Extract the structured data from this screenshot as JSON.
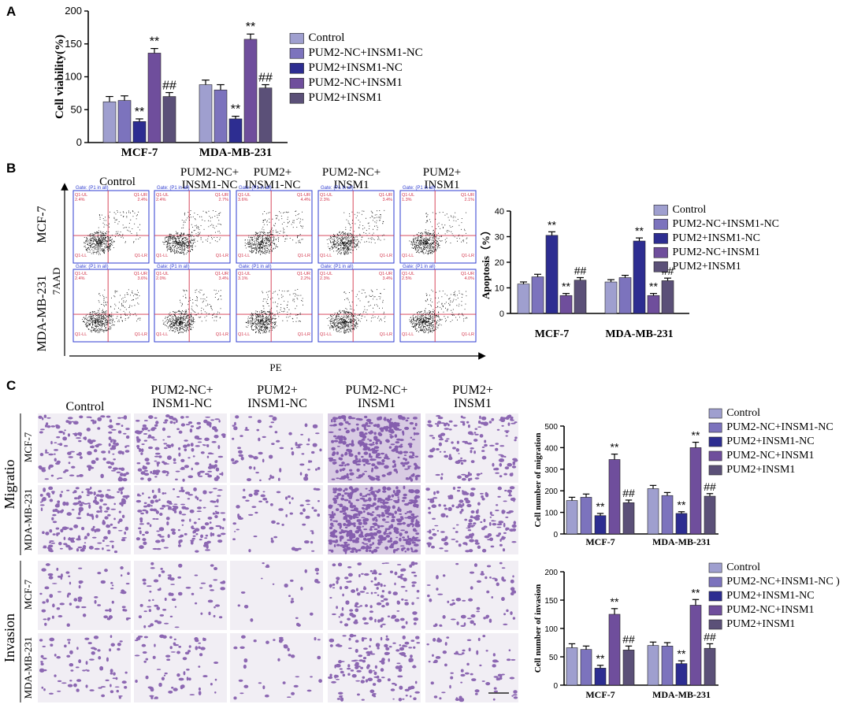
{
  "panels": {
    "a": "A",
    "b": "B",
    "c": "C"
  },
  "groups": [
    "Control",
    "PUM2-NC+INSM1-NC",
    "PUM2+INSM1-NC",
    "PUM2-NC+INSM1",
    "PUM2+INSM1"
  ],
  "colors": [
    "#9f9fcf",
    "#7c73bd",
    "#2d2d91",
    "#6f4e9c",
    "#5b5078"
  ],
  "condition_headers": [
    [
      "Control"
    ],
    [
      "PUM2-NC+",
      "INSM1-NC"
    ],
    [
      "PUM2+",
      "INSM1-NC"
    ],
    [
      "PUM2-NC+",
      "INSM1"
    ],
    [
      "PUM2+",
      "INSM1"
    ]
  ],
  "cell_lines": [
    "MCF-7",
    "MDA-MB-231"
  ],
  "flow": {
    "y_axis": "7AAD",
    "x_axis": "PE",
    "gate_label": "Gate: (P1 in all)",
    "quadrants": [
      "Q1-UL",
      "Q1-UR",
      "Q1-LL",
      "Q1-LR"
    ],
    "values": [
      [
        [
          "2.4%",
          "2.4%"
        ],
        [
          "2.4%",
          "2.7%"
        ],
        [
          "3.6%",
          "4.4%"
        ],
        [
          "2.3%",
          "3.4%"
        ],
        [
          "1.3%",
          "2.1%"
        ]
      ],
      [
        [
          "2.4%",
          "3.6%"
        ],
        [
          "2.0%",
          "3.4%"
        ],
        [
          "3.1%",
          "2.2%"
        ],
        [
          "2.3%",
          "3.4%"
        ],
        [
          "2.5%",
          "4.0%"
        ]
      ]
    ]
  },
  "assay_labels": {
    "migration": "Migratio",
    "invasion": "Invasion"
  },
  "legend_c_second_item": "PUM2-NC+INSM1-NC )",
  "chart_data": [
    {
      "id": "viability",
      "type": "bar",
      "ylabel": "Cell viability(%)",
      "ylim": [
        0,
        200
      ],
      "yticks": [
        0,
        50,
        100,
        150,
        200
      ],
      "categories": [
        "MCF-7",
        "MDA-MB-231"
      ],
      "series": [
        {
          "name": "Control",
          "values": [
            62,
            88
          ],
          "errors": [
            8,
            7
          ]
        },
        {
          "name": "PUM2-NC+INSM1-NC",
          "values": [
            64,
            80
          ],
          "errors": [
            7,
            8
          ]
        },
        {
          "name": "PUM2+INSM1-NC",
          "values": [
            32,
            36
          ],
          "errors": [
            4,
            4
          ]
        },
        {
          "name": "PUM2-NC+INSM1",
          "values": [
            136,
            157
          ],
          "errors": [
            7,
            8
          ]
        },
        {
          "name": "PUM2+INSM1",
          "values": [
            70,
            83
          ],
          "errors": [
            6,
            5
          ]
        }
      ],
      "annotations": [
        [
          "",
          ""
        ],
        [
          "",
          ""
        ],
        [
          "**",
          "**"
        ],
        [
          "**",
          "**"
        ],
        [
          "##",
          "##"
        ]
      ]
    },
    {
      "id": "apoptosis",
      "type": "bar",
      "ylabel": "Apoptosis（%）",
      "ylim": [
        0,
        40
      ],
      "yticks": [
        0,
        10,
        20,
        30,
        40
      ],
      "categories": [
        "MCF-7",
        "MDA-MB-231"
      ],
      "series": [
        {
          "name": "Control",
          "values": [
            11.5,
            12.3
          ],
          "errors": [
            0.8,
            0.9
          ]
        },
        {
          "name": "PUM2-NC+INSM1-NC",
          "values": [
            14.3,
            14
          ],
          "errors": [
            1,
            0.9
          ]
        },
        {
          "name": "PUM2+INSM1-NC",
          "values": [
            30.5,
            28.3
          ],
          "errors": [
            1.4,
            1.2
          ]
        },
        {
          "name": "PUM2-NC+INSM1",
          "values": [
            7,
            7
          ],
          "errors": [
            0.8,
            0.8
          ]
        },
        {
          "name": "PUM2+INSM1",
          "values": [
            13,
            12.8
          ],
          "errors": [
            1,
            1
          ]
        }
      ],
      "annotations": [
        [
          "",
          ""
        ],
        [
          "",
          ""
        ],
        [
          "**",
          "**"
        ],
        [
          "**",
          "**"
        ],
        [
          "##",
          "##"
        ]
      ]
    },
    {
      "id": "migration",
      "type": "bar",
      "ylabel": "Cell number of migration",
      "ylim": [
        0,
        500
      ],
      "yticks": [
        0,
        100,
        200,
        300,
        400,
        500
      ],
      "categories": [
        "MCF-7",
        "MDA-MB-231"
      ],
      "series": [
        {
          "name": "Control",
          "values": [
            155,
            210
          ],
          "errors": [
            15,
            15
          ]
        },
        {
          "name": "PUM2-NC+INSM1-NC",
          "values": [
            170,
            178
          ],
          "errors": [
            15,
            14
          ]
        },
        {
          "name": "PUM2+INSM1-NC",
          "values": [
            85,
            95
          ],
          "errors": [
            10,
            8
          ]
        },
        {
          "name": "PUM2-NC+INSM1",
          "values": [
            345,
            400
          ],
          "errors": [
            25,
            25
          ]
        },
        {
          "name": "PUM2+INSM1",
          "values": [
            145,
            175
          ],
          "errors": [
            12,
            12
          ]
        }
      ],
      "annotations": [
        [
          "",
          ""
        ],
        [
          "",
          ""
        ],
        [
          "**",
          "**"
        ],
        [
          "**",
          "**"
        ],
        [
          "##",
          "##"
        ]
      ]
    },
    {
      "id": "invasion",
      "type": "bar",
      "ylabel": "Cell number of invasion",
      "ylim": [
        0,
        200
      ],
      "yticks": [
        0,
        50,
        100,
        150,
        200
      ],
      "categories": [
        "MCF-7",
        "MDA-MB-231"
      ],
      "series": [
        {
          "name": "Control",
          "values": [
            66,
            70
          ],
          "errors": [
            7,
            6
          ]
        },
        {
          "name": "PUM2-NC+INSM1-NC",
          "values": [
            63,
            69
          ],
          "errors": [
            6,
            6
          ]
        },
        {
          "name": "PUM2+INSM1-NC",
          "values": [
            30,
            38
          ],
          "errors": [
            5,
            5
          ]
        },
        {
          "name": "PUM2-NC+INSM1",
          "values": [
            125,
            141
          ],
          "errors": [
            10,
            10
          ]
        },
        {
          "name": "PUM2+INSM1",
          "values": [
            62,
            65
          ],
          "errors": [
            7,
            8
          ]
        }
      ],
      "annotations": [
        [
          "",
          ""
        ],
        [
          "",
          ""
        ],
        [
          "**",
          "**"
        ],
        [
          "**",
          "**"
        ],
        [
          "##",
          "##"
        ]
      ]
    }
  ]
}
